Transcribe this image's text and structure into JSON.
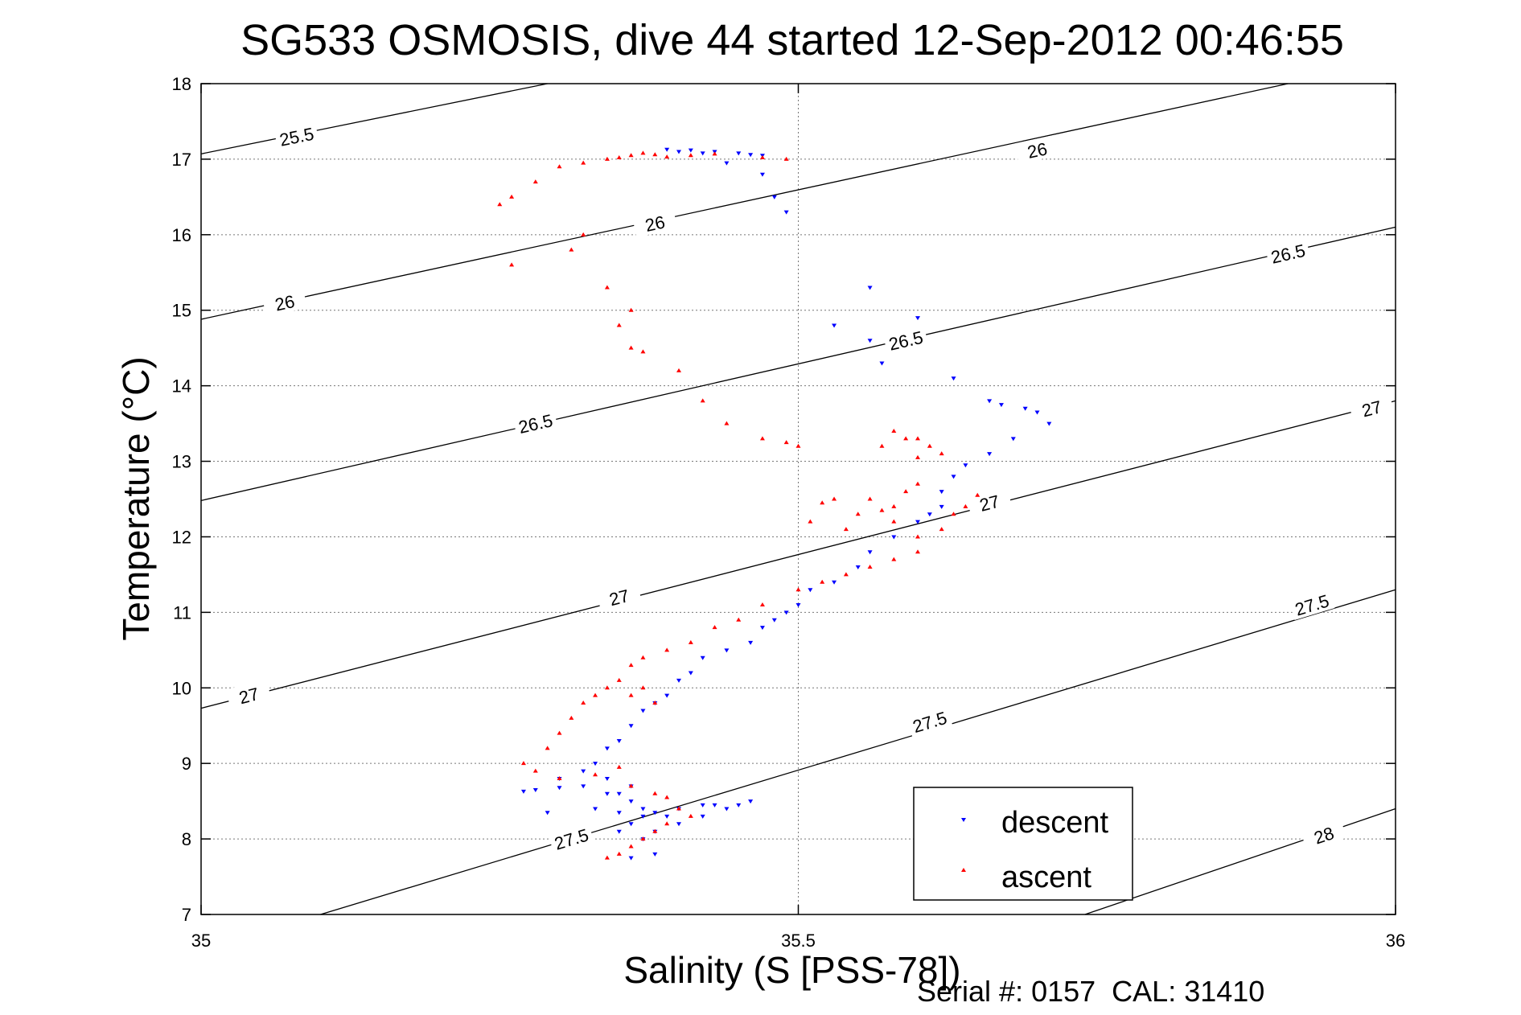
{
  "chart_data": {
    "type": "scatter",
    "title": "SG533 OSMOSIS, dive 44 started 12-Sep-2012 00:46:55",
    "xlabel": "Salinity (S [PSS-78])",
    "ylabel": "Temperature (°C)",
    "xlim": [
      35,
      36
    ],
    "ylim": [
      7,
      18
    ],
    "x_ticks": [
      35,
      35.5,
      36
    ],
    "x_tick_labels": [
      "35",
      "35.5",
      "36"
    ],
    "y_ticks": [
      7,
      8,
      9,
      10,
      11,
      12,
      13,
      14,
      15,
      16,
      17,
      18
    ],
    "y_tick_labels": [
      "7",
      "8",
      "9",
      "10",
      "11",
      "12",
      "13",
      "14",
      "15",
      "16",
      "17",
      "18"
    ],
    "grid": true,
    "legend_position": "bottom-right",
    "contour_labels": [
      "25.5",
      "26",
      "26.5",
      "27",
      "27.5",
      "28"
    ],
    "contours": [
      {
        "label": "25.5",
        "points": [
          [
            35,
            17.07
          ],
          [
            35.29,
            18
          ]
        ],
        "label_at": [
          [
            35.08,
            17.3
          ]
        ]
      },
      {
        "label": "26",
        "points": [
          [
            35,
            14.88
          ],
          [
            35.91,
            18
          ]
        ],
        "label_at": [
          [
            35.07,
            15.1
          ],
          [
            35.38,
            16.15
          ],
          [
            35.7,
            17.12
          ]
        ]
      },
      {
        "label": "26.5",
        "points": [
          [
            35,
            12.48
          ],
          [
            36,
            16.1
          ]
        ],
        "label_at": [
          [
            35.28,
            13.5
          ],
          [
            35.59,
            14.6
          ],
          [
            35.91,
            15.75
          ]
        ]
      },
      {
        "label": "27",
        "points": [
          [
            35,
            9.73
          ],
          [
            36,
            13.8
          ]
        ],
        "label_at": [
          [
            35.04,
            9.9
          ],
          [
            35.35,
            11.2
          ],
          [
            35.66,
            12.45
          ],
          [
            35.98,
            13.7
          ]
        ]
      },
      {
        "label": "27.5",
        "points": [
          [
            35.1,
            7
          ],
          [
            36,
            11.3
          ]
        ],
        "label_at": [
          [
            35.31,
            8.0
          ],
          [
            35.61,
            9.55
          ],
          [
            35.93,
            11.1
          ]
        ]
      },
      {
        "label": "28",
        "points": [
          [
            35.74,
            7
          ],
          [
            36,
            8.4
          ]
        ],
        "label_at": [
          [
            35.94,
            8.05
          ]
        ]
      }
    ],
    "series": [
      {
        "name": "descent",
        "color": "#0000ff",
        "marker": "triangle-down",
        "x": [
          35.39,
          35.4,
          35.42,
          35.44,
          35.47,
          35.48,
          35.49,
          35.41,
          35.43,
          35.45,
          35.46,
          35.47,
          35.56,
          35.53,
          35.56,
          35.57,
          35.6,
          35.63,
          35.66,
          35.67,
          35.69,
          35.7,
          35.71,
          35.68,
          35.66,
          35.64,
          35.63,
          35.62,
          35.62,
          35.61,
          35.6,
          35.58,
          35.56,
          35.55,
          35.53,
          35.51,
          35.5,
          35.49,
          35.48,
          35.47,
          35.46,
          35.44,
          35.42,
          35.41,
          35.4,
          35.39,
          35.38,
          35.37,
          35.36,
          35.35,
          35.34,
          35.33,
          35.32,
          35.3,
          35.34,
          35.36,
          35.37,
          35.38,
          35.39,
          35.4,
          35.42,
          35.43,
          35.45,
          35.46,
          35.44,
          35.42,
          35.4,
          35.38,
          35.37,
          35.38,
          35.36,
          35.35,
          35.36,
          35.34,
          35.33,
          35.35,
          35.37,
          35.36,
          35.35,
          35.28,
          35.3,
          35.32,
          35.29,
          35.27
        ],
        "y": [
          17.13,
          17.1,
          17.08,
          16.95,
          16.8,
          16.5,
          16.3,
          17.12,
          17.1,
          17.08,
          17.06,
          17.05,
          15.3,
          14.8,
          14.6,
          14.3,
          14.9,
          14.1,
          13.8,
          13.75,
          13.7,
          13.65,
          13.5,
          13.3,
          13.1,
          12.95,
          12.8,
          12.6,
          12.4,
          12.3,
          12.2,
          12.0,
          11.8,
          11.6,
          11.4,
          11.3,
          11.1,
          11.0,
          10.9,
          10.8,
          10.6,
          10.5,
          10.4,
          10.2,
          10.1,
          9.9,
          9.8,
          9.7,
          9.5,
          9.3,
          9.2,
          9.0,
          8.9,
          8.8,
          8.6,
          8.5,
          8.4,
          8.35,
          8.3,
          8.4,
          8.45,
          8.45,
          8.45,
          8.5,
          8.4,
          8.3,
          8.2,
          8.1,
          8.0,
          7.8,
          7.75,
          8.6,
          8.7,
          8.8,
          8.4,
          8.35,
          8.3,
          8.2,
          8.1,
          8.65,
          8.68,
          8.7,
          8.35,
          8.63
        ]
      },
      {
        "name": "ascent",
        "color": "#ff0000",
        "marker": "triangle-up",
        "x": [
          35.25,
          35.26,
          35.28,
          35.3,
          35.32,
          35.34,
          35.35,
          35.36,
          35.37,
          35.38,
          35.39,
          35.41,
          35.43,
          35.47,
          35.49,
          35.26,
          35.31,
          35.32,
          35.34,
          35.36,
          35.35,
          35.36,
          35.37,
          35.4,
          35.42,
          35.44,
          35.47,
          35.49,
          35.5,
          35.53,
          35.57,
          35.58,
          35.59,
          35.6,
          35.55,
          35.52,
          35.51,
          35.54,
          35.56,
          35.58,
          35.6,
          35.62,
          35.63,
          35.64,
          35.65,
          35.6,
          35.58,
          35.56,
          35.54,
          35.52,
          35.5,
          35.47,
          35.45,
          35.43,
          35.41,
          35.39,
          35.37,
          35.36,
          35.35,
          35.34,
          35.33,
          35.32,
          35.31,
          35.3,
          35.29,
          35.27,
          35.28,
          35.3,
          35.33,
          35.35,
          35.36,
          35.38,
          35.39,
          35.4,
          35.41,
          35.39,
          35.38,
          35.37,
          35.36,
          35.35,
          35.34,
          35.36,
          35.37,
          35.38,
          35.6,
          35.61,
          35.62,
          35.58,
          35.59,
          35.57,
          35.6
        ],
        "y": [
          16.4,
          16.5,
          16.7,
          16.9,
          16.95,
          17.0,
          17.02,
          17.05,
          17.08,
          17.06,
          17.03,
          17.05,
          17.07,
          17.02,
          17.0,
          15.6,
          15.8,
          16.0,
          15.3,
          15.0,
          14.8,
          14.5,
          14.45,
          14.2,
          13.8,
          13.5,
          13.3,
          13.25,
          13.2,
          12.5,
          12.35,
          12.4,
          12.6,
          12.7,
          12.3,
          12.45,
          12.2,
          12.1,
          12.5,
          12.2,
          12.0,
          12.1,
          12.3,
          12.4,
          12.55,
          11.8,
          11.7,
          11.6,
          11.5,
          11.4,
          11.3,
          11.1,
          10.9,
          10.8,
          10.6,
          10.5,
          10.4,
          10.3,
          10.1,
          10.0,
          9.9,
          9.8,
          9.6,
          9.4,
          9.2,
          9.0,
          8.9,
          8.8,
          8.85,
          8.95,
          8.7,
          8.6,
          8.55,
          8.4,
          8.3,
          8.2,
          8.1,
          8.0,
          7.9,
          7.8,
          7.75,
          9.9,
          10.0,
          9.8,
          13.3,
          13.2,
          13.1,
          13.4,
          13.3,
          13.2,
          13.05
        ]
      }
    ]
  },
  "footer": {
    "serial_label": "Serial #: 0157  CAL: 31410"
  }
}
